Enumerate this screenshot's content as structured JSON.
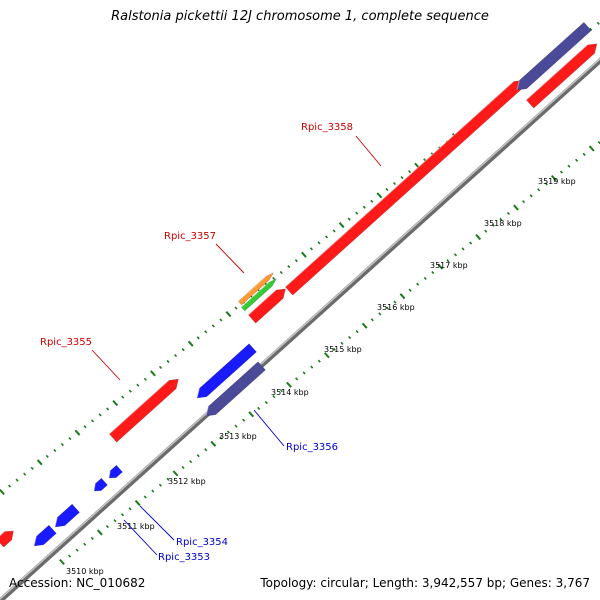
{
  "title": "Ralstonia pickettii 12J chromosome 1, complete sequence",
  "accession": "Accession: NC_010682",
  "summary": "Topology: circular; Length: 3,942,557 bp; Genes: 3,767",
  "colors": {
    "forward_gene": "#ff1a1a",
    "reverse_gene": "#1a1aff",
    "reverse_gene_dark": "#4a4a99",
    "orange_feature": "#ff9933",
    "green_feature": "#33cc33",
    "backbone": "#888888",
    "tick": "#1a7a1a",
    "forward_label": "#cc0000",
    "reverse_label": "#0000cc"
  },
  "scale_labels": [
    "3510 kbp",
    "3511 kbp",
    "3512 kbp",
    "3513 kbp",
    "3514 kbp",
    "3515 kbp",
    "3516 kbp",
    "3517 kbp",
    "3518 kbp",
    "3519 kbp"
  ],
  "gene_labels": {
    "rpic_3358": "Rpic_3358",
    "rpic_3357": "Rpic_3357",
    "rpic_3355": "Rpic_3355",
    "rpic_3356": "Rpic_3356",
    "rpic_3354": "Rpic_3354",
    "rpic_3353": "Rpic_3353"
  }
}
